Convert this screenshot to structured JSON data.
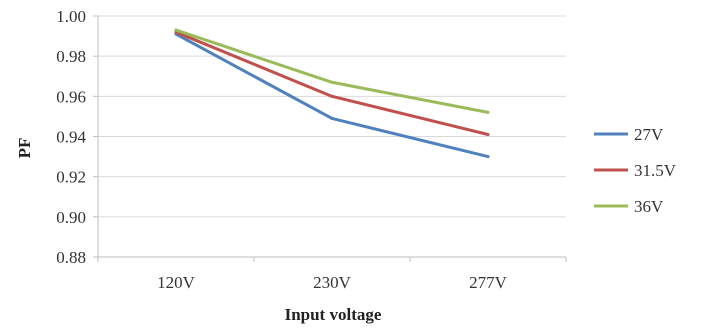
{
  "chart_data": {
    "type": "line",
    "title": "",
    "xlabel": "Input voltage",
    "ylabel": "PF",
    "categories": [
      "120V",
      "230V",
      "277V"
    ],
    "ylim": [
      0.88,
      1.0
    ],
    "yticks": [
      "0.88",
      "0.90",
      "0.92",
      "0.94",
      "0.96",
      "0.98",
      "1.00"
    ],
    "grid": true,
    "legend_position": "right",
    "series": [
      {
        "name": "27V",
        "values": [
          0.991,
          0.949,
          0.93
        ],
        "color": "#4f81bd"
      },
      {
        "name": "31.5V",
        "values": [
          0.992,
          0.96,
          0.941
        ],
        "color": "#c0504d"
      },
      {
        "name": "36V",
        "values": [
          0.993,
          0.967,
          0.952
        ],
        "color": "#9bbb59"
      }
    ]
  }
}
